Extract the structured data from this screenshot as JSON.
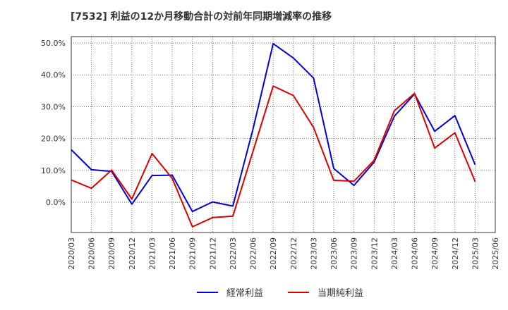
{
  "chart_data": {
    "type": "line",
    "title": "[7532]  利益の12か月移動合計の対前年同期増減率の推移",
    "x": [
      "2020/03",
      "2020/06",
      "2020/09",
      "2020/12",
      "2021/03",
      "2021/06",
      "2021/09",
      "2021/12",
      "2022/03",
      "2022/06",
      "2022/09",
      "2022/12",
      "2023/03",
      "2023/06",
      "2023/09",
      "2023/12",
      "2024/03",
      "2024/06",
      "2024/09",
      "2024/12",
      "2025/03",
      "2025/06"
    ],
    "ylim": [
      -9.5,
      52
    ],
    "yticks": [
      0,
      10,
      20,
      30,
      40,
      50
    ],
    "ytick_labels": [
      "0.0%",
      "10.0%",
      "20.0%",
      "30.0%",
      "40.0%",
      "50.0%"
    ],
    "series": [
      {
        "name": "経常利益",
        "color": "#0000dd",
        "values": [
          16.5,
          10.2,
          9.7,
          -0.6,
          8.4,
          8.5,
          -2.9,
          0.1,
          -1.2,
          23.0,
          49.8,
          45.3,
          39.0,
          10.6,
          5.3,
          12.6,
          27.0,
          34.0,
          22.3,
          27.2,
          11.8,
          null
        ]
      },
      {
        "name": "当期純利益",
        "color": "#dd0000",
        "values": [
          7.0,
          4.4,
          10.1,
          1.0,
          15.3,
          7.5,
          -7.7,
          -4.8,
          -4.4,
          16.0,
          36.5,
          33.5,
          23.5,
          6.9,
          6.6,
          13.2,
          28.7,
          34.2,
          17.0,
          21.8,
          6.5,
          null
        ]
      }
    ],
    "grid": true,
    "legend_position": "bottom-center"
  }
}
